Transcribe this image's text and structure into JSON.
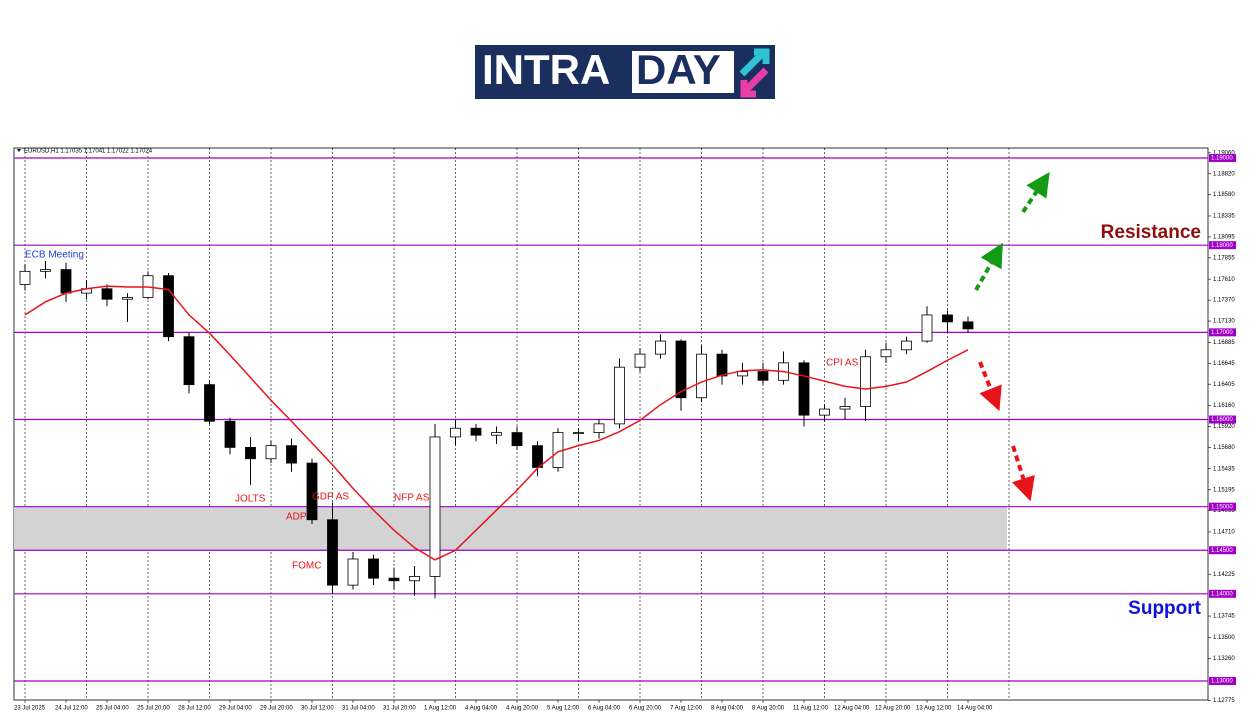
{
  "logo": {
    "left": "INTRA",
    "right": "DAY"
  },
  "chart_data": {
    "type": "candlestick",
    "symbol_info": "EURUSD,H1  1.17035 1.17041 1.17022 1.17024",
    "categories": [
      "23 Jul 2025",
      null,
      "24 Jul 12:00",
      null,
      "25 Jul 04:00",
      null,
      "25 Jul 20:00",
      null,
      "28 Jul 12:00",
      null,
      "29 Jul 04:00",
      null,
      "29 Jul 20:00",
      null,
      "30 Jul 12:00",
      null,
      "31 Jul 04:00",
      null,
      "31 Jul 20:00",
      null,
      "1 Aug 12:00",
      null,
      "4 Aug 04:00",
      null,
      "4 Aug 20:00",
      null,
      "5 Aug 12:00",
      null,
      "6 Aug 04:00",
      null,
      "6 Aug 20:00",
      null,
      "7 Aug 12:00",
      null,
      "8 Aug 04:00",
      null,
      "8 Aug 20:00",
      null,
      "11 Aug 12:00",
      null,
      "12 Aug 04:00",
      null,
      "12 Aug 20:00",
      null,
      "13 Aug 12:00",
      null,
      "14 Aug 04:00"
    ],
    "open": [
      1.1755,
      1.177,
      1.1772,
      1.1745,
      1.175,
      1.1738,
      1.174,
      1.1765,
      1.1695,
      1.164,
      1.1598,
      1.1568,
      1.1555,
      1.157,
      1.155,
      1.1485,
      1.141,
      1.144,
      1.1418,
      1.1415,
      1.142,
      1.158,
      1.159,
      1.1582,
      1.1585,
      1.157,
      1.1545,
      1.1585,
      1.1585,
      1.1595,
      1.166,
      1.1675,
      1.169,
      1.1625,
      1.1675,
      1.165,
      1.1655,
      1.1645,
      1.1665,
      1.1605,
      1.1612,
      1.1615,
      1.1672,
      1.168,
      1.169,
      1.172,
      1.1712
    ],
    "high": [
      1.1778,
      1.1782,
      1.178,
      1.176,
      1.1755,
      1.1745,
      1.177,
      1.1768,
      1.17,
      1.1645,
      1.1602,
      1.158,
      1.1575,
      1.1578,
      1.1555,
      1.1505,
      1.1448,
      1.1445,
      1.143,
      1.1432,
      1.1595,
      1.16,
      1.1595,
      1.1592,
      1.1592,
      1.1575,
      1.159,
      1.159,
      1.16,
      1.167,
      1.1682,
      1.1698,
      1.1692,
      1.1685,
      1.168,
      1.1665,
      1.1665,
      1.1678,
      1.1668,
      1.1618,
      1.1625,
      1.168,
      1.1688,
      1.1695,
      1.173,
      1.1725,
      1.1718
    ],
    "low": [
      1.1748,
      1.1762,
      1.1735,
      1.1738,
      1.173,
      1.1712,
      1.1738,
      1.169,
      1.163,
      1.1595,
      1.156,
      1.1525,
      1.155,
      1.154,
      1.148,
      1.14,
      1.1405,
      1.141,
      1.1405,
      1.1398,
      1.1395,
      1.157,
      1.1575,
      1.1572,
      1.1565,
      1.1535,
      1.154,
      1.1575,
      1.1578,
      1.159,
      1.1655,
      1.167,
      1.161,
      1.162,
      1.164,
      1.164,
      1.164,
      1.164,
      1.1592,
      1.1598,
      1.16,
      1.1598,
      1.1665,
      1.1675,
      1.1688,
      1.17,
      1.17
    ],
    "close": [
      1.177,
      1.1772,
      1.1745,
      1.175,
      1.1738,
      1.174,
      1.1765,
      1.1695,
      1.164,
      1.1598,
      1.1568,
      1.1555,
      1.157,
      1.155,
      1.1485,
      1.141,
      1.144,
      1.1418,
      1.1415,
      1.142,
      1.158,
      1.159,
      1.1582,
      1.1585,
      1.157,
      1.1545,
      1.1585,
      1.1585,
      1.1595,
      1.166,
      1.1675,
      1.169,
      1.1625,
      1.1675,
      1.165,
      1.1655,
      1.1645,
      1.1665,
      1.1605,
      1.1612,
      1.1615,
      1.1672,
      1.168,
      1.169,
      1.172,
      1.1712,
      1.1704
    ],
    "ma": {
      "color": "#e8141c",
      "values": [
        1.172,
        1.1735,
        1.1745,
        1.175,
        1.1753,
        1.1752,
        1.1752,
        1.1749,
        1.172,
        1.1699,
        1.1674,
        1.1648,
        1.1622,
        1.1598,
        1.1573,
        1.1548,
        1.1521,
        1.1496,
        1.1473,
        1.1453,
        1.1439,
        1.145,
        1.1473,
        1.1496,
        1.1519,
        1.1544,
        1.1563,
        1.157,
        1.1576,
        1.1586,
        1.1599,
        1.1617,
        1.1632,
        1.1643,
        1.1651,
        1.1656,
        1.1657,
        1.1655,
        1.165,
        1.1644,
        1.1638,
        1.1635,
        1.1638,
        1.1643,
        1.1655,
        1.1668,
        1.168
      ]
    },
    "ylim": [
      1.12782,
      1.19115
    ],
    "yticks": [
      {
        "value": 1.1906,
        "label": "1.19060"
      },
      {
        "value": 1.1882,
        "label": "1.18820"
      },
      {
        "value": 1.1858,
        "label": "1.18580"
      },
      {
        "value": 1.18335,
        "label": "1.18335"
      },
      {
        "value": 1.18095,
        "label": "1.18095"
      },
      {
        "value": 1.17855,
        "label": "1.17855"
      },
      {
        "value": 1.1761,
        "label": "1.17610"
      },
      {
        "value": 1.1737,
        "label": "1.17370"
      },
      {
        "value": 1.1713,
        "label": "1.17130"
      },
      {
        "value": 1.16885,
        "label": "1.16885"
      },
      {
        "value": 1.16645,
        "label": "1.16645"
      },
      {
        "value": 1.16405,
        "label": "1.16405"
      },
      {
        "value": 1.1616,
        "label": "1.16160"
      },
      {
        "value": 1.1592,
        "label": "1.15920"
      },
      {
        "value": 1.1568,
        "label": "1.15680"
      },
      {
        "value": 1.15435,
        "label": "1.15435"
      },
      {
        "value": 1.15195,
        "label": "1.15195"
      },
      {
        "value": 1.14955,
        "label": "1.14955"
      },
      {
        "value": 1.1471,
        "label": "1.14710"
      },
      {
        "value": 1.14225,
        "label": "1.14225"
      },
      {
        "value": 1.13745,
        "label": "1.13745"
      },
      {
        "value": 1.135,
        "label": "1.13500"
      },
      {
        "value": 1.1326,
        "label": "1.13260"
      },
      {
        "value": 1.12775,
        "label": "1.12775"
      }
    ],
    "levels": {
      "color": "#a000c8",
      "items": [
        {
          "value": 1.19,
          "label": "1.19000"
        },
        {
          "value": 1.18,
          "label": "1.18000"
        },
        {
          "value": 1.17,
          "label": "1.17000"
        },
        {
          "value": 1.16,
          "label": "1.16000"
        },
        {
          "value": 1.15,
          "label": "1.15000"
        },
        {
          "value": 1.145,
          "label": "1.14500"
        },
        {
          "value": 1.14,
          "label": "1.14000"
        },
        {
          "value": 1.13,
          "label": "1.13000"
        }
      ]
    },
    "zone": [
      1.145,
      1.15
    ],
    "annotations": [
      {
        "text": "ECB Meeting",
        "color": "#1f3fd0"
      },
      {
        "text": "JOLTS",
        "color": "#e8141c"
      },
      {
        "text": "GDP AS",
        "color": "#e8141c"
      },
      {
        "text": "ADP",
        "color": "#e8141c"
      },
      {
        "text": "FOMC",
        "color": "#e8141c"
      },
      {
        "text": "NFP AS",
        "color": "#e8141c"
      },
      {
        "text": "CPI AS",
        "color": "#e8141c"
      }
    ],
    "resistance": "Resistance",
    "support": "Support"
  }
}
